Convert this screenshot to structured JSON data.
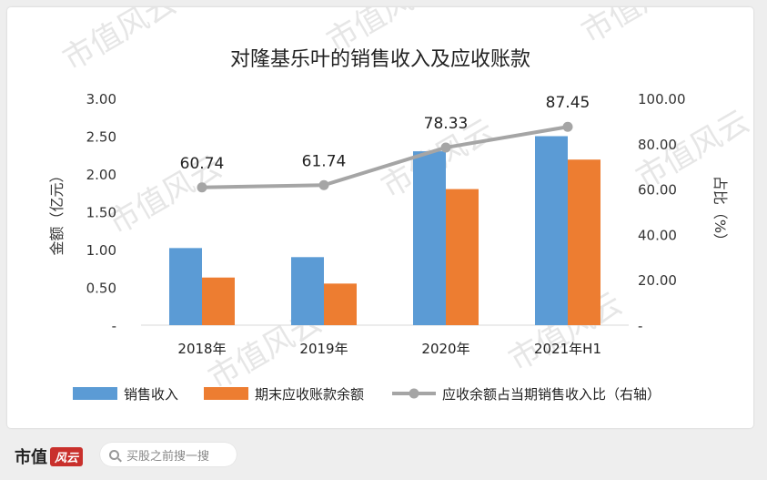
{
  "chart_data": {
    "type": "bar",
    "title": "对隆基乐叶的销售收入及应收账款",
    "categories": [
      "2018年",
      "2019年",
      "2020年",
      "2021年H1"
    ],
    "series": [
      {
        "name": "销售收入",
        "type": "bar",
        "axis": "left",
        "color": "#5b9bd5",
        "values": [
          1.02,
          0.9,
          2.3,
          2.5
        ]
      },
      {
        "name": "期末应收账款余额",
        "type": "bar",
        "axis": "left",
        "color": "#ed7d31",
        "values": [
          0.63,
          0.55,
          1.8,
          2.19
        ]
      },
      {
        "name": "应收余额占当期销售收入比（右轴）",
        "type": "line",
        "axis": "right",
        "color": "#a5a5a5",
        "values": [
          60.74,
          61.74,
          78.33,
          87.45
        ]
      }
    ],
    "data_labels": [
      "60.74",
      "61.74",
      "78.33",
      "87.45"
    ],
    "ylabel": "金额（亿元）",
    "y2label": "占比（%）",
    "ylim": [
      0,
      3
    ],
    "y2lim": [
      0,
      100
    ],
    "y_ticks": [
      "-",
      "0.50",
      "1.00",
      "1.50",
      "2.00",
      "2.50",
      "3.00"
    ],
    "y2_ticks": [
      "-",
      "20.00",
      "40.00",
      "60.00",
      "80.00",
      "100.00"
    ],
    "grid": false,
    "legend_position": "bottom"
  },
  "watermark": "市值风云",
  "footer": {
    "brand_text": "市值",
    "brand_seal": "风云",
    "search_icon": "search-icon",
    "search_placeholder": "买股之前搜一搜"
  }
}
